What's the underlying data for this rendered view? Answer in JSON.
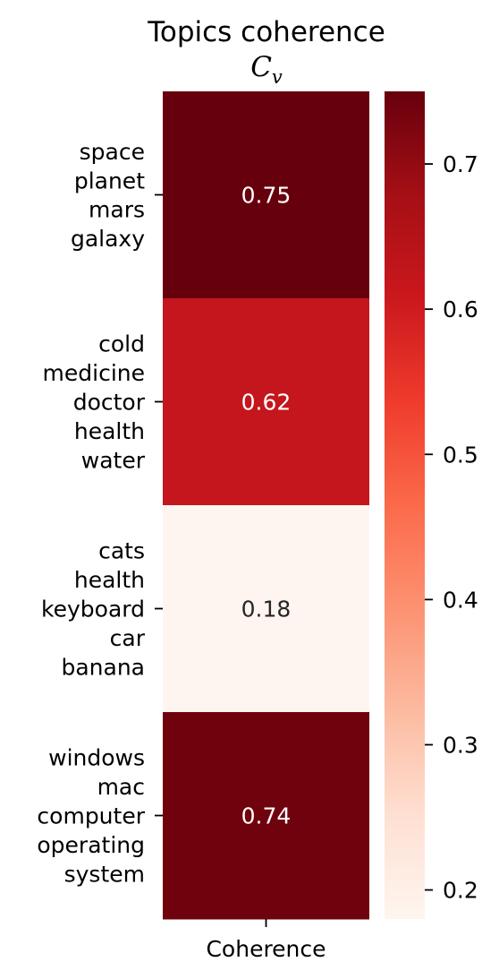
{
  "chart_data": {
    "type": "heatmap",
    "title": "Topics coherence",
    "subtitle": {
      "main": "C",
      "sub": "v"
    },
    "rows": [
      {
        "words": [
          "space",
          "planet",
          "mars",
          "galaxy"
        ],
        "value": 0.75,
        "label": "0.75"
      },
      {
        "words": [
          "cold",
          "medicine",
          "doctor",
          "health",
          "water"
        ],
        "value": 0.62,
        "label": "0.62"
      },
      {
        "words": [
          "cats",
          "health",
          "keyboard",
          "car",
          "banana"
        ],
        "value": 0.18,
        "label": "0.18"
      },
      {
        "words": [
          "windows",
          "mac",
          "computer",
          "operating",
          "system"
        ],
        "value": 0.74,
        "label": "0.74"
      }
    ],
    "columns": [
      "Coherence"
    ],
    "colormap": "Reds",
    "colorbar": {
      "vmin": 0.18,
      "vmax": 0.75,
      "ticks": [
        0.2,
        0.3,
        0.4,
        0.5,
        0.6,
        0.7
      ],
      "tick_labels": [
        "0.2",
        "0.3",
        "0.4",
        "0.5",
        "0.6",
        "0.7"
      ]
    },
    "colors": {
      "cmap_stops": [
        "#fff5f0",
        "#fee0d2",
        "#fcbba1",
        "#fc9272",
        "#fb6a4a",
        "#ef3b2c",
        "#cb181d",
        "#a50f15",
        "#67000d"
      ],
      "light_text": "#ffffff",
      "dark_text": "#262626",
      "axis": "#000000"
    }
  }
}
